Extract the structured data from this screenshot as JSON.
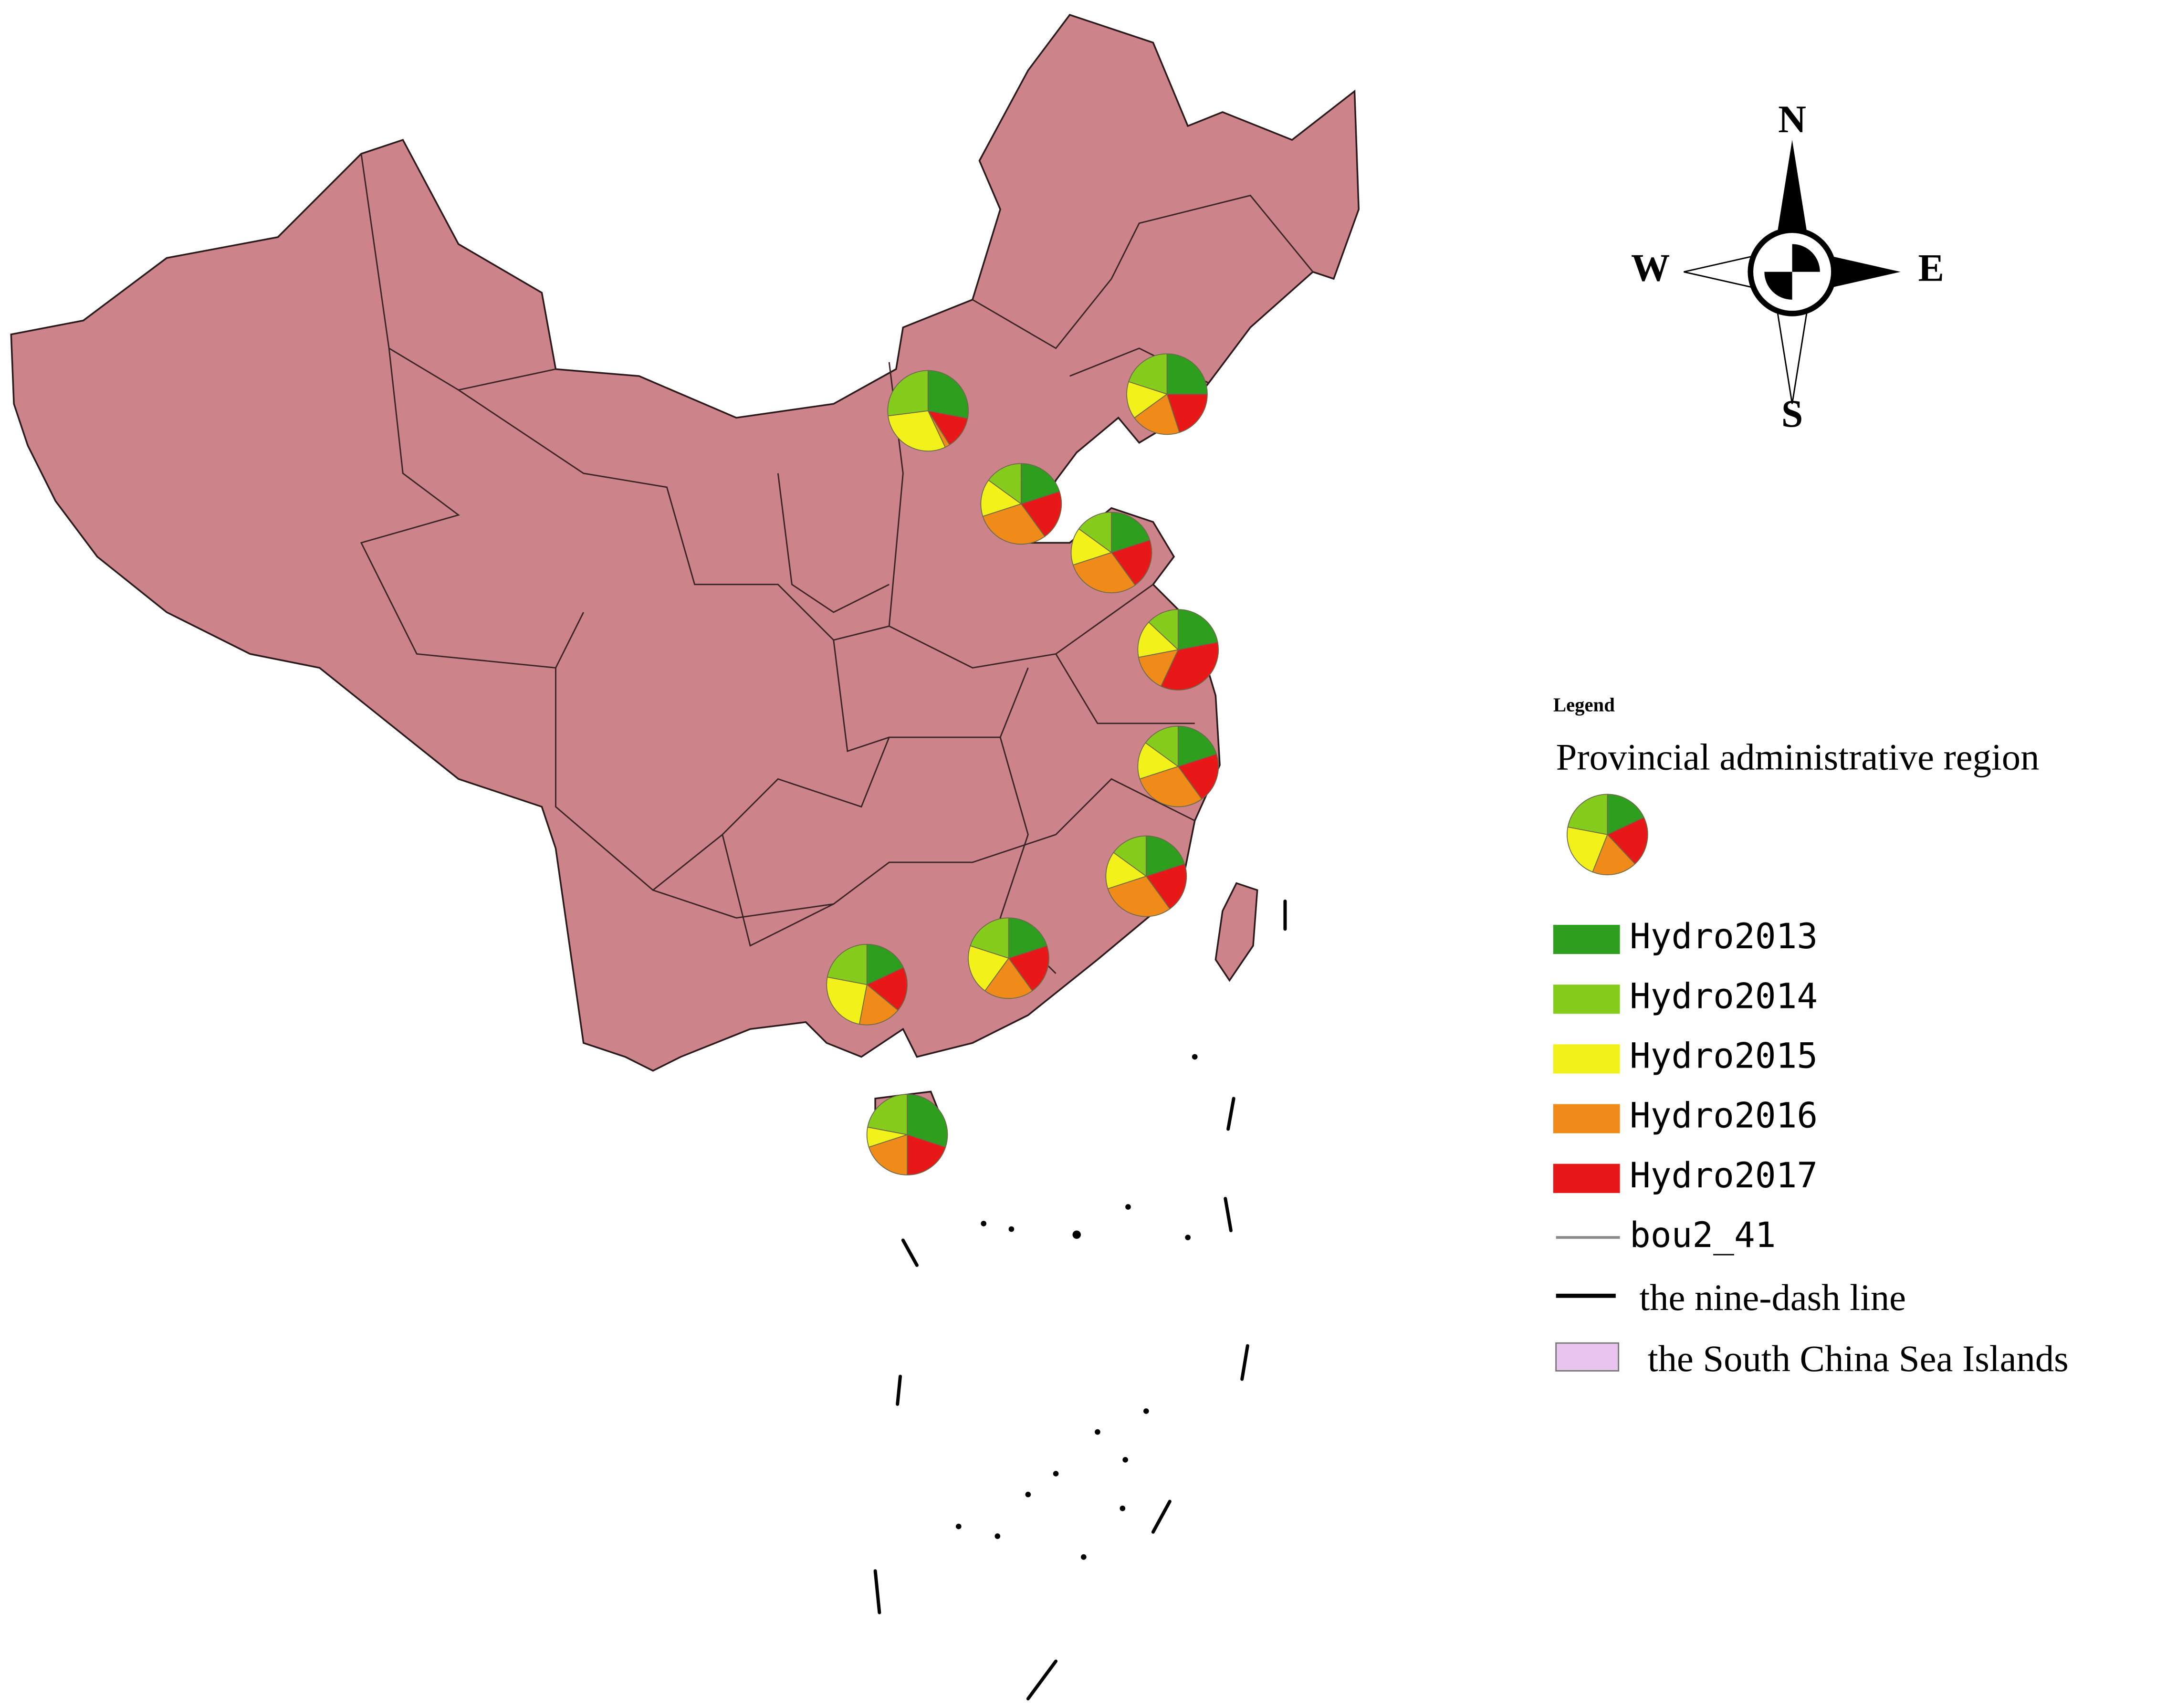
{
  "compass": {
    "north": "N",
    "south": "S",
    "west": "W",
    "east": "E"
  },
  "legend": {
    "title": "Legend",
    "layer": "Provincial administrative region",
    "items": [
      {
        "label": "Hydro2013",
        "color": "#2e9e1e"
      },
      {
        "label": "Hydro2014",
        "color": "#86cc1c"
      },
      {
        "label": "Hydro2015",
        "color": "#f2f21a"
      },
      {
        "label": "Hydro2016",
        "color": "#f08a18"
      },
      {
        "label": "Hydro2017",
        "color": "#e81818"
      }
    ],
    "boundary": {
      "label": "bou2_41",
      "color": "#8a8a8a"
    },
    "nine_dash": {
      "label": "the nine-dash line",
      "color": "#000000"
    },
    "islands": {
      "label": "the South China Sea Islands",
      "color": "#e8c4ee"
    }
  },
  "map_fill": "#cc838a",
  "pies": [
    {
      "values": [
        28,
        27,
        30,
        2,
        13
      ]
    },
    {
      "values": [
        25,
        20,
        15,
        20,
        20
      ]
    },
    {
      "values": [
        20,
        15,
        15,
        30,
        20
      ]
    },
    {
      "values": [
        20,
        15,
        15,
        30,
        20
      ]
    },
    {
      "values": [
        22,
        13,
        15,
        15,
        35
      ]
    },
    {
      "values": [
        20,
        15,
        15,
        30,
        20
      ]
    },
    {
      "values": [
        20,
        15,
        15,
        30,
        20
      ]
    },
    {
      "values": [
        20,
        20,
        20,
        20,
        20
      ]
    },
    {
      "values": [
        18,
        22,
        25,
        17,
        18
      ]
    },
    {
      "values": [
        30,
        22,
        8,
        20,
        20
      ]
    },
    {
      "values": [
        18,
        22,
        22,
        18,
        20
      ]
    }
  ]
}
